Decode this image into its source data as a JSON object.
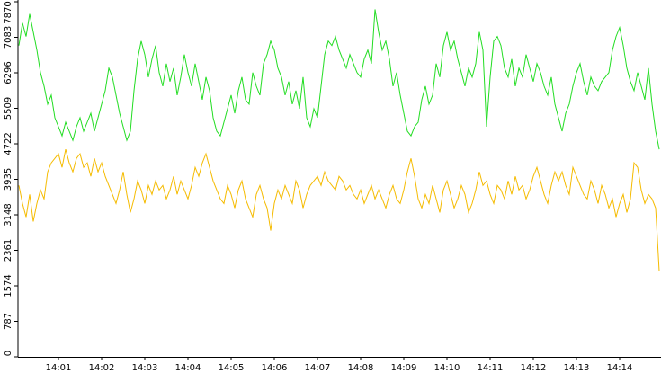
{
  "chart_data": {
    "type": "line",
    "categories": [
      null,
      null,
      null,
      null,
      null,
      null,
      null,
      null,
      null,
      null,
      null,
      "14:01",
      null,
      null,
      null,
      null,
      null,
      null,
      null,
      null,
      null,
      null,
      null,
      "14:02",
      null,
      null,
      null,
      null,
      null,
      null,
      null,
      null,
      null,
      null,
      null,
      "14:03",
      null,
      null,
      null,
      null,
      null,
      null,
      null,
      null,
      null,
      null,
      null,
      "14:04",
      null,
      null,
      null,
      null,
      null,
      null,
      null,
      null,
      null,
      null,
      null,
      "14:05",
      null,
      null,
      null,
      null,
      null,
      null,
      null,
      null,
      null,
      null,
      null,
      "14:06",
      null,
      null,
      null,
      null,
      null,
      null,
      null,
      null,
      null,
      null,
      null,
      "14:07",
      null,
      null,
      null,
      null,
      null,
      null,
      null,
      null,
      null,
      null,
      null,
      "14:08",
      null,
      null,
      null,
      null,
      null,
      null,
      null,
      null,
      null,
      null,
      null,
      "14:09",
      null,
      null,
      null,
      null,
      null,
      null,
      null,
      null,
      null,
      null,
      null,
      "14:10",
      null,
      null,
      null,
      null,
      null,
      null,
      null,
      null,
      null,
      null,
      null,
      "14:11",
      null,
      null,
      null,
      null,
      null,
      null,
      null,
      null,
      null,
      null,
      null,
      "14:12",
      null,
      null,
      null,
      null,
      null,
      null,
      null,
      null,
      null,
      null,
      null,
      "14:13",
      null,
      null,
      null,
      null,
      null,
      null,
      null,
      null,
      null,
      null,
      null,
      "14:14",
      null,
      null,
      null,
      null,
      null,
      null,
      null,
      null,
      null,
      null,
      null
    ],
    "series": [
      {
        "color": "#22dd22",
        "values": [
          6900,
          7400,
          7100,
          7600,
          7200,
          6800,
          6300,
          6000,
          5600,
          5800,
          5300,
          5100,
          4900,
          5200,
          5000,
          4800,
          5100,
          5300,
          5000,
          5200,
          5400,
          5000,
          5300,
          5600,
          5900,
          6400,
          6200,
          5800,
          5400,
          5100,
          4800,
          5000,
          5900,
          6600,
          7000,
          6700,
          6200,
          6600,
          6900,
          6300,
          6000,
          6500,
          6100,
          6400,
          5800,
          6200,
          6700,
          6300,
          6000,
          6500,
          6100,
          5700,
          6200,
          5900,
          5300,
          5000,
          4900,
          5200,
          5500,
          5800,
          5400,
          5900,
          6200,
          5700,
          5600,
          6300,
          6000,
          5800,
          6500,
          6700,
          7000,
          6800,
          6400,
          6200,
          5800,
          6100,
          5600,
          5900,
          5500,
          6200,
          5300,
          5100,
          5500,
          5300,
          6000,
          6700,
          7000,
          6900,
          7100,
          6800,
          6600,
          6400,
          6700,
          6500,
          6300,
          6200,
          6600,
          6800,
          6500,
          7700,
          7200,
          6800,
          7000,
          6600,
          6000,
          6300,
          5800,
          5400,
          5000,
          4900,
          5100,
          5200,
          5700,
          6000,
          5600,
          5800,
          6500,
          6200,
          6900,
          7200,
          6800,
          7000,
          6600,
          6300,
          6000,
          6400,
          6200,
          6500,
          7200,
          6800,
          5100,
          6200,
          7000,
          7100,
          6900,
          6400,
          6200,
          6600,
          6000,
          6400,
          6200,
          6700,
          6400,
          6100,
          6500,
          6300,
          6000,
          5800,
          6200,
          5600,
          5300,
          5000,
          5400,
          5600,
          6000,
          6300,
          6500,
          6100,
          5800,
          6200,
          6000,
          5900,
          6100,
          6200,
          6300,
          6800,
          7100,
          7300,
          6900,
          6400,
          6100,
          5900,
          6300,
          6000,
          5700,
          6400,
          5600,
          5000,
          4600
        ]
      },
      {
        "color": "#f5bb00",
        "values": [
          3800,
          3400,
          3100,
          3600,
          3000,
          3400,
          3700,
          3500,
          4100,
          4300,
          4400,
          4500,
          4200,
          4600,
          4300,
          4100,
          4400,
          4500,
          4200,
          4300,
          4000,
          4400,
          4100,
          4300,
          4000,
          3800,
          3600,
          3400,
          3700,
          4100,
          3600,
          3200,
          3500,
          3900,
          3700,
          3400,
          3800,
          3600,
          3900,
          3700,
          3800,
          3500,
          3700,
          4000,
          3600,
          3900,
          3700,
          3500,
          3800,
          4200,
          4000,
          4300,
          4500,
          4200,
          3900,
          3700,
          3500,
          3400,
          3800,
          3600,
          3300,
          3700,
          3900,
          3500,
          3300,
          3100,
          3600,
          3800,
          3500,
          3300,
          2800,
          3400,
          3700,
          3500,
          3800,
          3600,
          3400,
          3900,
          3700,
          3300,
          3600,
          3800,
          3900,
          4000,
          3800,
          4100,
          3900,
          3800,
          3700,
          4000,
          3900,
          3700,
          3800,
          3600,
          3500,
          3700,
          3400,
          3600,
          3800,
          3500,
          3700,
          3500,
          3300,
          3600,
          3800,
          3500,
          3400,
          3700,
          4100,
          4400,
          4000,
          3500,
          3300,
          3600,
          3400,
          3800,
          3500,
          3200,
          3700,
          3900,
          3600,
          3300,
          3500,
          3800,
          3600,
          3200,
          3400,
          3700,
          4100,
          3800,
          3900,
          3600,
          3400,
          3800,
          3700,
          3500,
          3900,
          3600,
          4000,
          3700,
          3800,
          3500,
          3700,
          4000,
          4200,
          3900,
          3600,
          3400,
          3800,
          4100,
          3900,
          4100,
          3800,
          3600,
          4200,
          4000,
          3800,
          3600,
          3500,
          3900,
          3700,
          3400,
          3800,
          3600,
          3300,
          3500,
          3100,
          3400,
          3600,
          3200,
          3500,
          4300,
          4200,
          3700,
          3400,
          3600,
          3500,
          3300,
          1900
        ]
      }
    ],
    "ylim": [
      0,
      7870
    ],
    "yticks": [
      0,
      787,
      1574,
      2361,
      3148,
      3935,
      4722,
      5509,
      6296,
      7083,
      7870
    ]
  }
}
